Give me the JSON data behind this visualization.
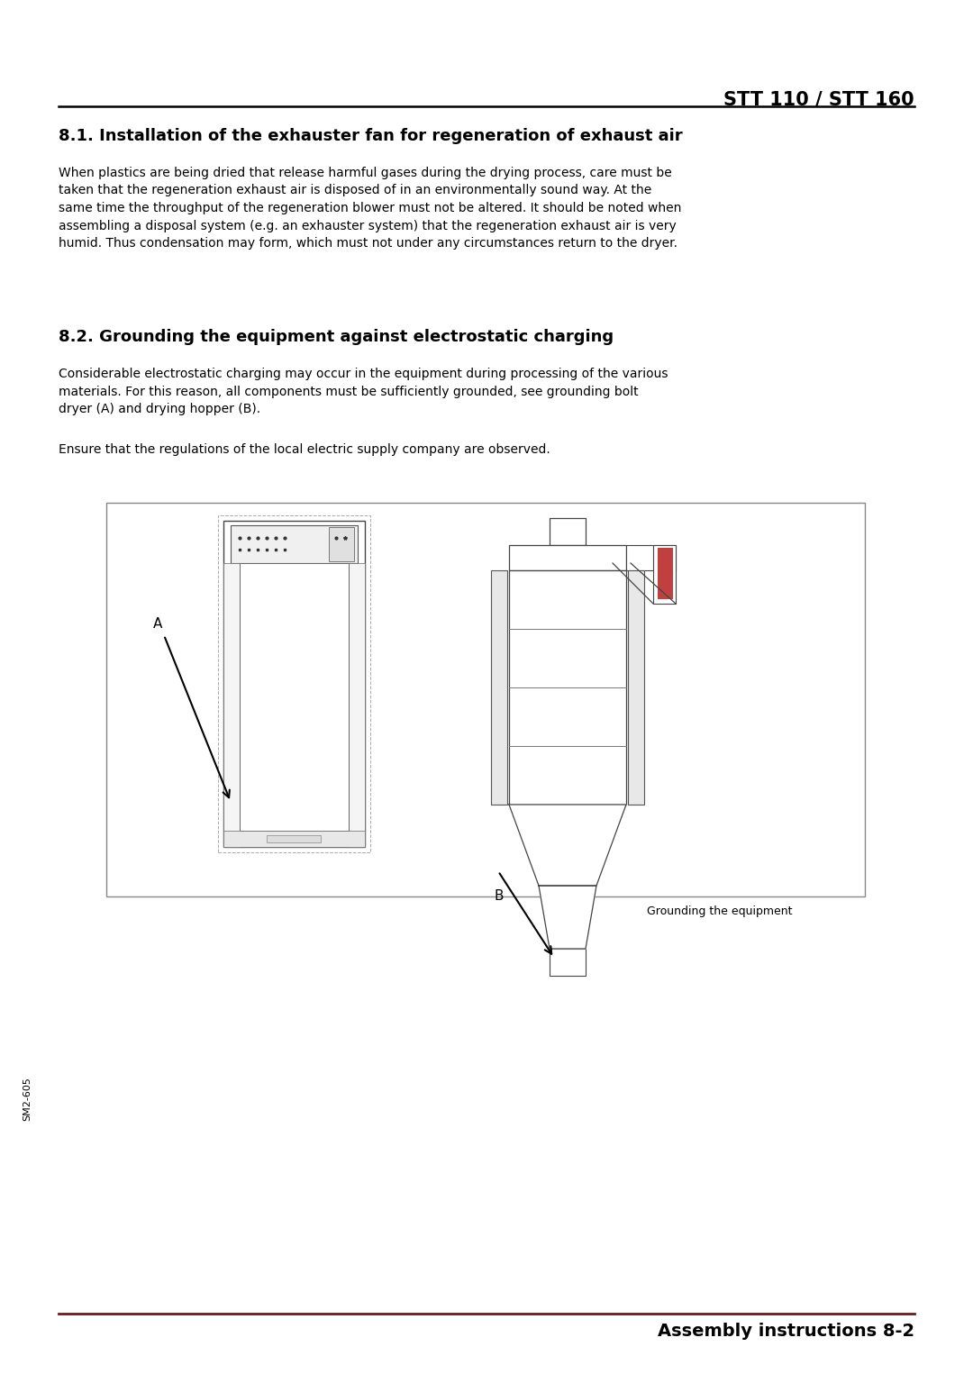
{
  "page_bg": "#ffffff",
  "header_title": "STT 110 / STT 160",
  "section1_title": "8.1. Installation of the exhauster fan for regeneration of exhaust air",
  "section1_body": "When plastics are being dried that release harmful gases during the drying process, care must be\ntaken that the regeneration exhaust air is disposed of in an environmentally sound way. At the\nsame time the throughput of the regeneration blower must not be altered. It should be noted when\nassembling a disposal system (e.g. an exhauster system) that the regeneration exhaust air is very\nhumid. Thus condensation may form, which must not under any circumstances return to the dryer.",
  "section2_title": "8.2. Grounding the equipment against electrostatic charging",
  "section2_body1": "Considerable electrostatic charging may occur in the equipment during processing of the various\nmaterials. For this reason, all components must be sufficiently grounded, see grounding bolt\ndryer (A) and drying hopper (B).",
  "section2_body2": "Ensure that the regulations of the local electric supply company are observed.",
  "figure_caption": "Grounding the equipment",
  "footer_text": "Assembly instructions 8-2",
  "footer_line_color": "#6b1a1a",
  "sidebar_text": "SM2-605",
  "label_A": "A",
  "label_B": "B",
  "text_color": "#000000"
}
